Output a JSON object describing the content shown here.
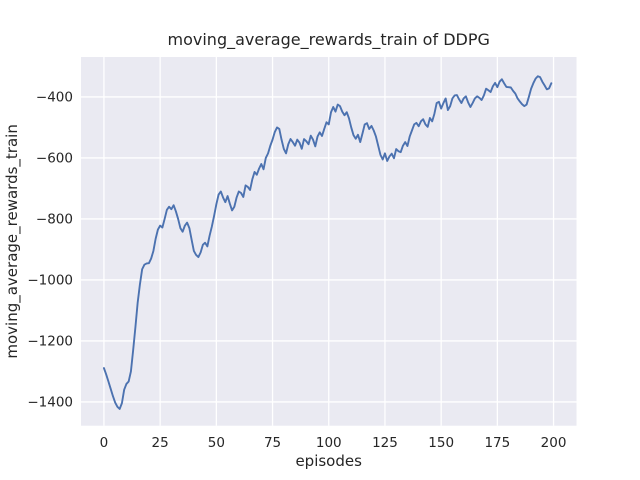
{
  "chart_data": {
    "type": "line",
    "title": "moving_average_rewards_train of DDPG",
    "xlabel": "episodes",
    "ylabel": "moving_average_rewards_train",
    "legend_position": "none",
    "grid": true,
    "background_color": "#EAEAF2",
    "grid_color": "#ffffff",
    "text_color": "#262626",
    "line_color": "#4C72B0",
    "xlim": [
      -10.2,
      210.2
    ],
    "ylim": [
      -1478,
      -269
    ],
    "x_ticks": [
      0,
      25,
      50,
      75,
      100,
      125,
      150,
      175,
      200
    ],
    "y_ticks": [
      -400,
      -600,
      -800,
      -1000,
      -1200,
      -1400
    ],
    "series": [
      {
        "name": "moving_average_rewards_train",
        "x_start": 0,
        "x_step": 1,
        "values": [
          -1289,
          -1310,
          -1333,
          -1357,
          -1381,
          -1402,
          -1416,
          -1423,
          -1404,
          -1360,
          -1341,
          -1333,
          -1300,
          -1230,
          -1155,
          -1075,
          -1015,
          -965,
          -950,
          -946,
          -945,
          -930,
          -905,
          -865,
          -835,
          -822,
          -828,
          -800,
          -770,
          -760,
          -768,
          -755,
          -775,
          -800,
          -830,
          -842,
          -822,
          -812,
          -830,
          -868,
          -905,
          -918,
          -925,
          -910,
          -885,
          -878,
          -890,
          -855,
          -825,
          -790,
          -752,
          -720,
          -710,
          -730,
          -745,
          -725,
          -750,
          -772,
          -760,
          -730,
          -710,
          -715,
          -728,
          -690,
          -695,
          -705,
          -670,
          -646,
          -655,
          -635,
          -620,
          -637,
          -600,
          -585,
          -560,
          -540,
          -515,
          -500,
          -505,
          -540,
          -570,
          -585,
          -555,
          -538,
          -548,
          -560,
          -540,
          -550,
          -570,
          -538,
          -545,
          -555,
          -527,
          -540,
          -562,
          -530,
          -516,
          -528,
          -505,
          -483,
          -490,
          -450,
          -433,
          -448,
          -425,
          -430,
          -448,
          -460,
          -450,
          -470,
          -500,
          -525,
          -537,
          -524,
          -548,
          -520,
          -490,
          -486,
          -505,
          -495,
          -510,
          -530,
          -560,
          -590,
          -605,
          -585,
          -610,
          -595,
          -586,
          -601,
          -571,
          -578,
          -581,
          -560,
          -548,
          -561,
          -530,
          -510,
          -490,
          -485,
          -496,
          -480,
          -473,
          -490,
          -498,
          -469,
          -480,
          -455,
          -420,
          -416,
          -438,
          -420,
          -405,
          -443,
          -430,
          -405,
          -395,
          -394,
          -408,
          -420,
          -405,
          -398,
          -418,
          -433,
          -420,
          -405,
          -398,
          -403,
          -410,
          -395,
          -373,
          -378,
          -384,
          -365,
          -354,
          -368,
          -350,
          -342,
          -355,
          -367,
          -368,
          -369,
          -380,
          -389,
          -405,
          -415,
          -424,
          -430,
          -425,
          -400,
          -373,
          -355,
          -340,
          -332,
          -335,
          -350,
          -362,
          -375,
          -372,
          -355
        ]
      }
    ]
  }
}
